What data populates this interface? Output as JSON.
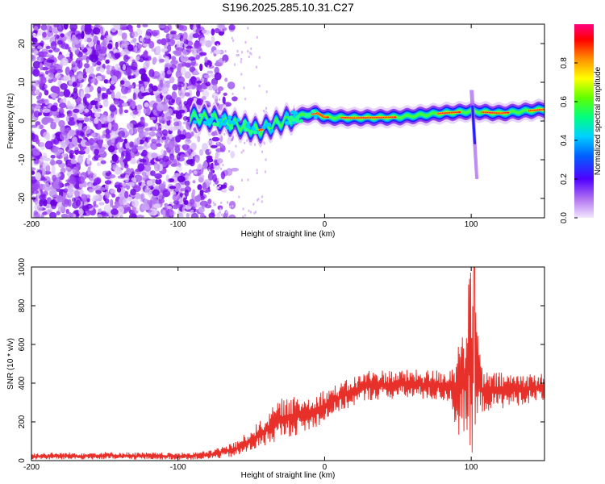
{
  "title": "S196.2025.285.10.31.C27",
  "chart_data": [
    {
      "type": "heatmap",
      "xlabel": "Height of straight line (km)",
      "ylabel": "Frequency (Hz)",
      "xlim": [
        -200,
        150
      ],
      "ylim": [
        -25,
        25
      ],
      "xticks": [
        -200,
        -100,
        0,
        100
      ],
      "yticks": [
        -20,
        -10,
        0,
        10,
        20
      ],
      "colorbar": {
        "label": "Normalized spectral amplitude",
        "range": [
          0.0,
          1.0
        ],
        "ticks": [
          "0.0",
          "0.2",
          "0.4",
          "0.6",
          "0.8"
        ],
        "colors": [
          "#f2e6ff",
          "#8a2be2",
          "#0000ff",
          "#00bfff",
          "#00ff80",
          "#80ff00",
          "#ffff00",
          "#ff8000",
          "#ff0000",
          "#ff0080"
        ]
      },
      "signal_track": [
        {
          "x": -90,
          "freq": 1.0
        },
        {
          "x": -75,
          "freq": 0.5
        },
        {
          "x": -60,
          "freq": -1.0
        },
        {
          "x": -45,
          "freq": -2.5
        },
        {
          "x": -35,
          "freq": -1.0
        },
        {
          "x": -25,
          "freq": 0.5
        },
        {
          "x": -15,
          "freq": 1.5
        },
        {
          "x": -5,
          "freq": 2.0
        },
        {
          "x": 0,
          "freq": 1.0
        },
        {
          "x": 20,
          "freq": 0.8
        },
        {
          "x": 50,
          "freq": 1.0
        },
        {
          "x": 80,
          "freq": 2.0
        },
        {
          "x": 100,
          "freq": 2.5
        },
        {
          "x": 120,
          "freq": 2.0
        },
        {
          "x": 150,
          "freq": 3.0
        }
      ],
      "noise_region": {
        "x_from": -200,
        "x_to": -70,
        "density": "high"
      },
      "transient": {
        "x": 100,
        "freq_from": -15,
        "freq_to": 8
      }
    },
    {
      "type": "line",
      "xlabel": "Height of straight line (km)",
      "ylabel": "SNR (10 * v/v)",
      "xlim": [
        -200,
        150
      ],
      "ylim": [
        0,
        1000
      ],
      "xticks": [
        -200,
        -100,
        0,
        100
      ],
      "yticks": [
        0,
        200,
        400,
        600,
        800,
        1000
      ],
      "color": "#e8302a",
      "envelope": [
        {
          "x": -200,
          "low": 5,
          "high": 40
        },
        {
          "x": -150,
          "low": 5,
          "high": 45
        },
        {
          "x": -100,
          "low": 5,
          "high": 40
        },
        {
          "x": -80,
          "low": 5,
          "high": 50
        },
        {
          "x": -60,
          "low": 20,
          "high": 100
        },
        {
          "x": -45,
          "low": 60,
          "high": 200
        },
        {
          "x": -30,
          "low": 110,
          "high": 320
        },
        {
          "x": -10,
          "low": 150,
          "high": 340
        },
        {
          "x": 10,
          "low": 250,
          "high": 400
        },
        {
          "x": 30,
          "low": 310,
          "high": 470
        },
        {
          "x": 60,
          "low": 320,
          "high": 470
        },
        {
          "x": 85,
          "low": 300,
          "high": 470
        },
        {
          "x": 92,
          "low": 100,
          "high": 640
        },
        {
          "x": 100,
          "low": 20,
          "high": 1000
        },
        {
          "x": 108,
          "low": 250,
          "high": 460
        },
        {
          "x": 150,
          "low": 310,
          "high": 450
        }
      ],
      "peak": {
        "x": 102,
        "y": 1000
      }
    }
  ]
}
